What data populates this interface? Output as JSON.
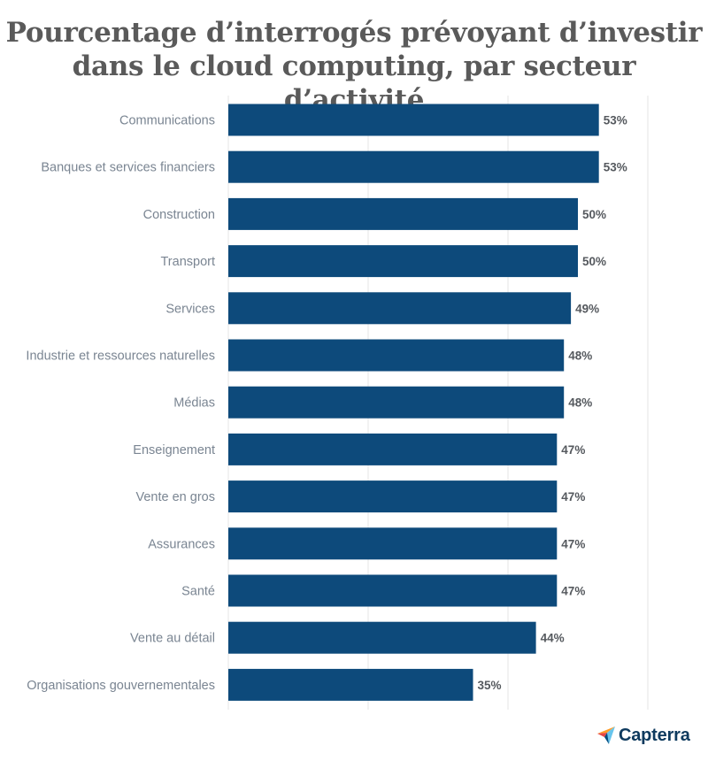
{
  "title_line1": "Pourcentage d’interrogés prévoyant d’investir",
  "title_line2": "dans le cloud computing, par secteur d’activité",
  "brand": "Capterra",
  "colors": {
    "bar": "#0d4a7b",
    "gridline": "#e6e6e6",
    "title": "#5a5a5a",
    "category_text": "#7a8592",
    "value_text": "#55595e"
  },
  "chart_data": {
    "type": "bar",
    "orientation": "horizontal",
    "title": "Pourcentage d’interrogés prévoyant d’investir dans le cloud computing, par secteur d’activité",
    "xlim": [
      0,
      60
    ],
    "grid": true,
    "categories": [
      "Communications",
      "Banques et services financiers",
      "Construction",
      "Transport",
      "Services",
      "Industrie et ressources naturelles",
      "Médias",
      "Enseignement",
      "Vente en gros",
      "Assurances",
      "Santé",
      "Vente au détail",
      "Organisations gouvernementales"
    ],
    "values": [
      53,
      53,
      50,
      50,
      49,
      48,
      48,
      47,
      47,
      47,
      47,
      44,
      35
    ],
    "value_labels": [
      "53%",
      "53%",
      "50%",
      "50%",
      "49%",
      "48%",
      "48%",
      "47%",
      "47%",
      "47%",
      "47%",
      "44%",
      "35%"
    ]
  }
}
